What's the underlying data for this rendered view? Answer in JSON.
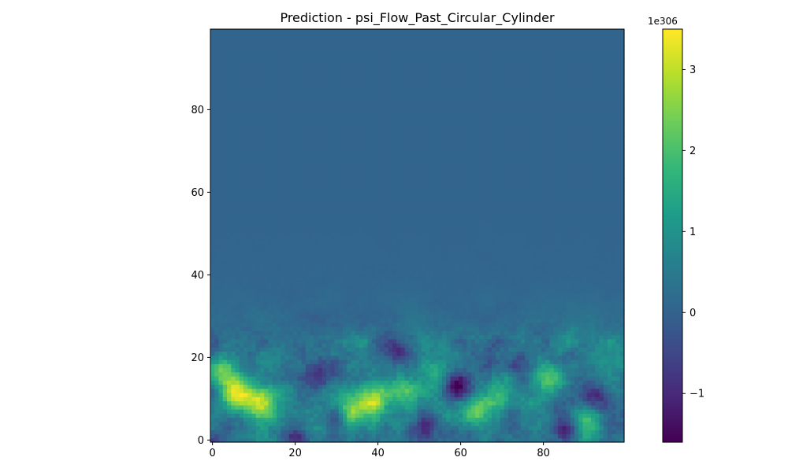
{
  "chart_data": {
    "type": "heatmap",
    "title": "Prediction - psi_Flow_Past_Circular_Cylinder",
    "xlabel": "",
    "ylabel": "",
    "grid_size": [
      100,
      100
    ],
    "xlim": [
      0,
      99
    ],
    "ylim": [
      0,
      99
    ],
    "x_ticks": [
      0,
      20,
      40,
      60,
      80
    ],
    "y_ticks": [
      0,
      20,
      40,
      60,
      80
    ],
    "colorbar": {
      "colormap": "viridis",
      "range": [
        -1.6,
        3.5
      ],
      "ticks": [
        -1,
        0,
        1,
        2,
        3
      ],
      "tick_labels": [
        "−1",
        "0",
        "1",
        "2",
        "3"
      ],
      "offset_text": "1e306"
    },
    "background_value": 0.05,
    "turbulent_band_rows": [
      0,
      24
    ],
    "hotspots": [
      {
        "x": 6,
        "y": 11,
        "value": 3.4
      },
      {
        "x": 12,
        "y": 9,
        "value": 2.9
      },
      {
        "x": 3,
        "y": 16,
        "value": 2.4
      },
      {
        "x": 39,
        "y": 10,
        "value": 2.6
      },
      {
        "x": 33,
        "y": 7,
        "value": 2.2
      },
      {
        "x": 47,
        "y": 12,
        "value": 1.8
      },
      {
        "x": 64,
        "y": 7,
        "value": 1.9
      },
      {
        "x": 70,
        "y": 11,
        "value": 1.7
      },
      {
        "x": 82,
        "y": 15,
        "value": 2.3
      },
      {
        "x": 90,
        "y": 4,
        "value": 1.8
      },
      {
        "x": 54,
        "y": 16,
        "value": 1.4
      },
      {
        "x": 97,
        "y": 20,
        "value": 1.0
      }
    ],
    "lows": [
      {
        "x": 20,
        "y": 1,
        "value": -1.5
      },
      {
        "x": 25,
        "y": 15,
        "value": -1.0
      },
      {
        "x": 59,
        "y": 13,
        "value": -1.5
      },
      {
        "x": 52,
        "y": 4,
        "value": -1.3
      },
      {
        "x": 74,
        "y": 18,
        "value": -1.2
      },
      {
        "x": 86,
        "y": 2,
        "value": -1.4
      },
      {
        "x": 93,
        "y": 10,
        "value": -1.1
      },
      {
        "x": 45,
        "y": 22,
        "value": -0.8
      },
      {
        "x": 30,
        "y": 5,
        "value": -1.0
      },
      {
        "x": 68,
        "y": 22,
        "value": -0.7
      }
    ]
  }
}
